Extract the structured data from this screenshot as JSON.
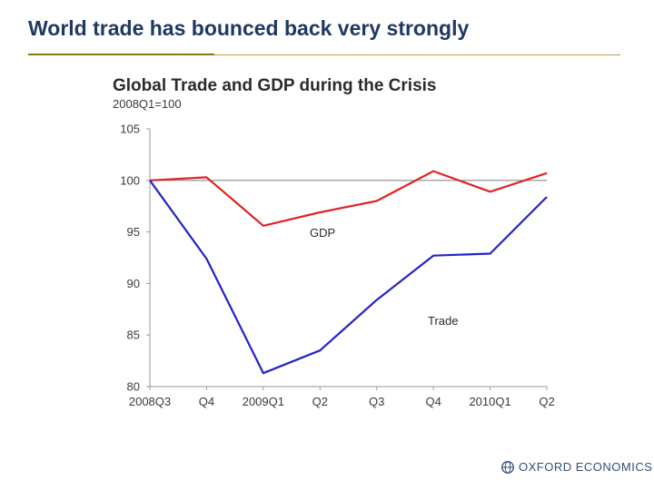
{
  "slide": {
    "title": "World trade has bounced back very strongly"
  },
  "logo": {
    "text": "OXFORD ECONOMICS"
  },
  "colors": {
    "title": "#1f3864",
    "gdp": "#e02424",
    "trade": "#2323c8",
    "reference": "#8c8c8c"
  },
  "chart_data": {
    "type": "line",
    "title": "Global Trade and GDP during the Crisis",
    "subtitle": "2008Q1=100",
    "categories": [
      "2008Q3",
      "Q4",
      "2009Q1",
      "Q2",
      "Q3",
      "Q4",
      "2010Q1",
      "Q2"
    ],
    "ylim": [
      80,
      105
    ],
    "yticks": [
      "105",
      "100",
      "95",
      "90",
      "85",
      "80"
    ],
    "reference_line": 100,
    "series": [
      {
        "name": "GDP",
        "label": "GDP",
        "values": [
          100.0,
          100.3,
          95.6,
          96.9,
          98.0,
          100.9,
          98.9,
          100.7
        ]
      },
      {
        "name": "Trade",
        "label": "Trade",
        "values": [
          100.0,
          92.4,
          81.3,
          83.5,
          88.4,
          92.7,
          92.9,
          98.4
        ]
      }
    ]
  }
}
